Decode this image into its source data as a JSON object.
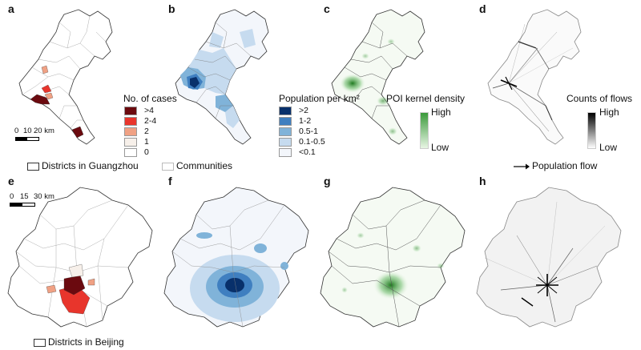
{
  "panels": {
    "a": "a",
    "b": "b",
    "c": "c",
    "d": "d",
    "e": "e",
    "f": "f",
    "g": "g",
    "h": "h"
  },
  "legend_cases": {
    "title": "No. of cases",
    "items": [
      {
        "label": ">4",
        "color": "#6b0a0f"
      },
      {
        "label": "2-4",
        "color": "#e8352c"
      },
      {
        "label": "2",
        "color": "#f0a184"
      },
      {
        "label": "1",
        "color": "#f7f0ea"
      },
      {
        "label": "0",
        "color": "#ffffff"
      }
    ]
  },
  "legend_population": {
    "title": "Population per km²",
    "items": [
      {
        "label": ">2",
        "color": "#08306b"
      },
      {
        "label": "1-2",
        "color": "#3f7fc0"
      },
      {
        "label": "0.5-1",
        "color": "#80b3d9"
      },
      {
        "label": "0.1-0.5",
        "color": "#c6dbef"
      },
      {
        "label": "<0.1",
        "color": "#f3f6fb"
      }
    ]
  },
  "legend_poi": {
    "title": "POI kernel density",
    "high": "High",
    "low": "Low",
    "color_high": "#3a9a3a",
    "color_low": "#e8f5e4"
  },
  "legend_flows": {
    "title": "Counts of flows",
    "high": "High",
    "low": "Low",
    "color_high": "#000000",
    "color_low": "#ffffff"
  },
  "legend_districts_gz": "Districts in Guangzhou",
  "legend_communities": "Communities",
  "legend_population_flow": "Population flow",
  "legend_districts_bj": "Districts in Beijing",
  "scale_gz": {
    "t0": "0",
    "t1": "10",
    "t2": "20 km"
  },
  "scale_bj": {
    "t0": "0",
    "t1": "15",
    "t2": "30 km"
  }
}
